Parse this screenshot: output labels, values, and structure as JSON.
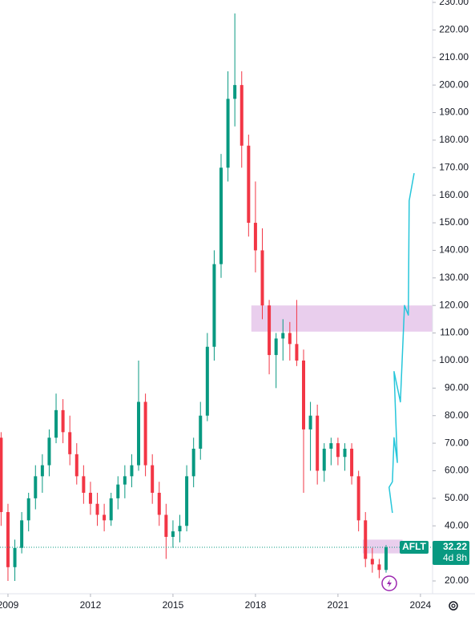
{
  "chart_data": {
    "type": "candlestick",
    "symbol": "AFLT",
    "countdown": "4d 8h",
    "up_color": "#089981",
    "down_color": "#f23645",
    "x": [
      2008.75,
      2009.0,
      2009.25,
      2009.5,
      2009.75,
      2010.0,
      2010.25,
      2010.5,
      2010.75,
      2011.0,
      2011.25,
      2011.5,
      2011.75,
      2012.0,
      2012.25,
      2012.5,
      2012.75,
      2013.0,
      2013.25,
      2013.5,
      2013.75,
      2014.0,
      2014.25,
      2014.5,
      2014.75,
      2015.0,
      2015.25,
      2015.5,
      2015.75,
      2016.0,
      2016.25,
      2016.5,
      2016.75,
      2017.0,
      2017.25,
      2017.5,
      2017.75,
      2018.0,
      2018.25,
      2018.5,
      2018.75,
      2019.0,
      2019.25,
      2019.5,
      2019.75,
      2020.0,
      2020.25,
      2020.5,
      2020.75,
      2021.0,
      2021.25,
      2021.5,
      2021.75,
      2022.0,
      2022.25,
      2022.5,
      2022.75
    ],
    "open": [
      72,
      45,
      25,
      32,
      42,
      50,
      58,
      62,
      72,
      82,
      74,
      66,
      58,
      52,
      48,
      44,
      42,
      50,
      55,
      58,
      62,
      85,
      62,
      52,
      44,
      36,
      38,
      40,
      58,
      68,
      80,
      105,
      135,
      170,
      195,
      200,
      178,
      150,
      140,
      120,
      102,
      108,
      110,
      106,
      100,
      75,
      80,
      60,
      68,
      70,
      65,
      68,
      58,
      42,
      28,
      26,
      24
    ],
    "high": [
      74,
      48,
      35,
      45,
      52,
      62,
      66,
      75,
      88,
      86,
      80,
      70,
      62,
      56,
      52,
      48,
      52,
      58,
      62,
      66,
      100,
      88,
      66,
      56,
      48,
      42,
      44,
      62,
      72,
      85,
      110,
      140,
      175,
      205,
      226,
      205,
      182,
      165,
      148,
      122,
      110,
      115,
      114,
      122,
      104,
      85,
      84,
      70,
      72,
      72,
      70,
      70,
      60,
      45,
      32,
      28,
      33
    ],
    "low": [
      40,
      20,
      20,
      30,
      38,
      46,
      52,
      58,
      70,
      70,
      62,
      55,
      48,
      44,
      40,
      38,
      40,
      46,
      50,
      54,
      60,
      58,
      48,
      40,
      28,
      32,
      34,
      38,
      54,
      64,
      78,
      100,
      130,
      165,
      185,
      170,
      145,
      132,
      115,
      95,
      90,
      100,
      100,
      98,
      52,
      60,
      55,
      56,
      62,
      62,
      60,
      55,
      38,
      25,
      23,
      21,
      23
    ],
    "close": [
      45,
      25,
      32,
      42,
      50,
      58,
      62,
      72,
      82,
      74,
      66,
      58,
      52,
      48,
      44,
      42,
      50,
      55,
      58,
      62,
      85,
      62,
      52,
      44,
      36,
      38,
      40,
      58,
      68,
      80,
      105,
      135,
      170,
      195,
      200,
      178,
      150,
      140,
      120,
      102,
      108,
      110,
      106,
      100,
      75,
      80,
      60,
      68,
      70,
      65,
      68,
      58,
      42,
      28,
      26,
      24,
      32.22
    ],
    "zones": [
      {
        "x": [
          2017.85,
          2024.6
        ],
        "y": [
          110.5,
          120
        ]
      },
      {
        "x": [
          2021.9,
          2023.35
        ],
        "y": [
          30,
          35
        ]
      }
    ],
    "zone_color": "#e1bee7",
    "projection": {
      "x": [
        2022.98,
        2022.86,
        2022.98,
        2023.04,
        2023.16,
        2023.04,
        2023.27,
        2023.42,
        2023.56,
        2023.59,
        2023.77
      ],
      "y": [
        44.7,
        54,
        56,
        72,
        63,
        96,
        85,
        120,
        116.5,
        158,
        168
      ],
      "color": "#26c6da"
    },
    "xlim": [
      2008.71,
      2024.44
    ],
    "ylim": [
      20,
      230
    ],
    "xticks": [
      2009,
      2012,
      2015,
      2018,
      2021,
      2024
    ],
    "yticks": [
      {
        "value": 20,
        "label": "20.00"
      },
      {
        "value": 30,
        "label": "30.00"
      },
      {
        "value": 40,
        "label": "40.00"
      },
      {
        "value": 50,
        "label": "50.00"
      },
      {
        "value": 60,
        "label": "60.00"
      },
      {
        "value": 70,
        "label": "70.00"
      },
      {
        "value": 80,
        "label": "80.00"
      },
      {
        "value": 90,
        "label": "90.00"
      },
      {
        "value": 100,
        "label": "100.00"
      },
      {
        "value": 110,
        "label": "110.00"
      },
      {
        "value": 120,
        "label": "120.00"
      },
      {
        "value": 130,
        "label": "130.00"
      },
      {
        "value": 140,
        "label": "140.00"
      },
      {
        "value": 150,
        "label": "150.00"
      },
      {
        "value": 160,
        "label": "160.00"
      },
      {
        "value": 170,
        "label": "170.00"
      },
      {
        "value": 180,
        "label": "180.00"
      },
      {
        "value": 190,
        "label": "190.00"
      },
      {
        "value": 200,
        "label": "200.00"
      },
      {
        "value": 210,
        "label": "210.00"
      },
      {
        "value": 220,
        "label": "220.00"
      },
      {
        "value": 230,
        "label": "230.00"
      }
    ]
  }
}
